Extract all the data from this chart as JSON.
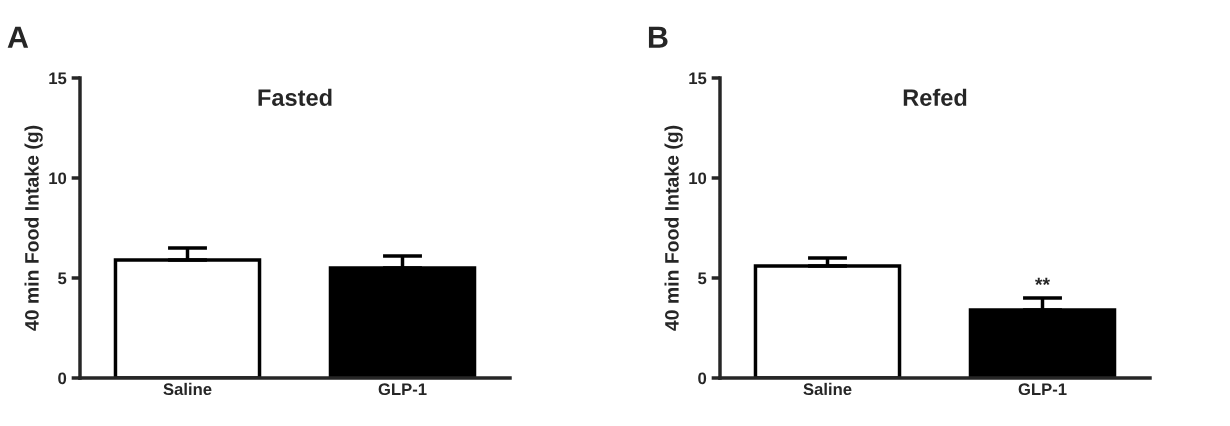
{
  "chart_data": [
    {
      "type": "bar",
      "title": "Fasted",
      "ylabel": "40 min Food Intake (g)",
      "annotations": [
        "A"
      ],
      "categories": [
        "Saline",
        "GLP-1"
      ],
      "values": [
        5.9,
        5.5
      ],
      "colors": [
        "#ffffff",
        "#000000"
      ],
      "errors": [
        [
          5.9,
          6.5
        ],
        [
          5.5,
          6.1
        ]
      ],
      "ylim": [
        0,
        15
      ],
      "yticks": [
        0,
        5,
        10,
        15
      ],
      "grid": false,
      "legend": false
    },
    {
      "type": "bar",
      "title": "Refed",
      "ylabel": "40 min Food Intake (g)",
      "annotations": [
        "B",
        "**"
      ],
      "categories": [
        "Saline",
        "GLP-1"
      ],
      "values": [
        5.6,
        3.4
      ],
      "colors": [
        "#ffffff",
        "#000000"
      ],
      "errors": [
        [
          5.6,
          6.0
        ],
        [
          3.4,
          4.0
        ]
      ],
      "ylim": [
        0,
        15
      ],
      "yticks": [
        0,
        5,
        10,
        15
      ],
      "grid": false,
      "legend": false
    }
  ]
}
